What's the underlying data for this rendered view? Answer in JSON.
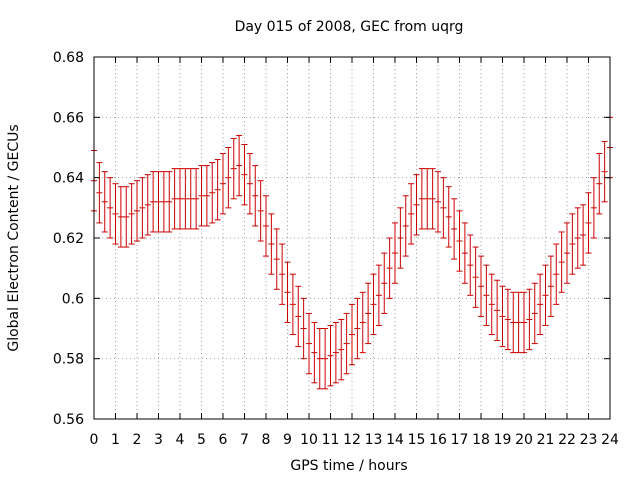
{
  "chart_data": {
    "type": "errorbar",
    "title": "Day 015 of 2008, GEC from uqrg",
    "xlabel": "GPS time / hours",
    "ylabel": "Global Electron Content / GECUs",
    "xlim": [
      0,
      24
    ],
    "ylim": [
      0.56,
      0.68
    ],
    "x_ticks": [
      "0",
      "1",
      "2",
      "3",
      "4",
      "5",
      "6",
      "7",
      "8",
      "9",
      "10",
      "11",
      "12",
      "13",
      "14",
      "15",
      "16",
      "17",
      "18",
      "19",
      "20",
      "21",
      "22",
      "23",
      "24"
    ],
    "y_ticks": [
      "0.56",
      "0.58",
      "0.6",
      "0.62",
      "0.64",
      "0.66",
      "0.68"
    ],
    "grid": true,
    "series": [
      {
        "name": "GEC",
        "color": "#cc0000",
        "x": [
          0.0,
          0.25,
          0.5,
          0.75,
          1.0,
          1.25,
          1.5,
          1.75,
          2.0,
          2.25,
          2.5,
          2.75,
          3.0,
          3.25,
          3.5,
          3.75,
          4.0,
          4.25,
          4.5,
          4.75,
          5.0,
          5.25,
          5.5,
          5.75,
          6.0,
          6.25,
          6.5,
          6.75,
          7.0,
          7.25,
          7.5,
          7.75,
          8.0,
          8.25,
          8.5,
          8.75,
          9.0,
          9.25,
          9.5,
          9.75,
          10.0,
          10.25,
          10.5,
          10.75,
          11.0,
          11.25,
          11.5,
          11.75,
          12.0,
          12.25,
          12.5,
          12.75,
          13.0,
          13.25,
          13.5,
          13.75,
          14.0,
          14.25,
          14.5,
          14.75,
          15.0,
          15.25,
          15.5,
          15.75,
          16.0,
          16.25,
          16.5,
          16.75,
          17.0,
          17.25,
          17.5,
          17.75,
          18.0,
          18.25,
          18.5,
          18.75,
          19.0,
          19.25,
          19.5,
          19.75,
          20.0,
          20.25,
          20.5,
          20.75,
          21.0,
          21.25,
          21.5,
          21.75,
          22.0,
          22.25,
          22.5,
          22.75,
          23.0,
          23.25,
          23.5,
          23.75,
          24.0
        ],
        "values": [
          0.639,
          0.635,
          0.632,
          0.63,
          0.628,
          0.627,
          0.627,
          0.628,
          0.629,
          0.63,
          0.631,
          0.632,
          0.632,
          0.632,
          0.632,
          0.633,
          0.633,
          0.633,
          0.633,
          0.633,
          0.634,
          0.634,
          0.635,
          0.636,
          0.638,
          0.64,
          0.643,
          0.644,
          0.641,
          0.638,
          0.634,
          0.629,
          0.624,
          0.618,
          0.613,
          0.608,
          0.602,
          0.598,
          0.594,
          0.59,
          0.585,
          0.582,
          0.58,
          0.58,
          0.581,
          0.582,
          0.583,
          0.585,
          0.588,
          0.59,
          0.592,
          0.595,
          0.598,
          0.601,
          0.605,
          0.61,
          0.615,
          0.62,
          0.624,
          0.628,
          0.631,
          0.633,
          0.633,
          0.633,
          0.632,
          0.63,
          0.627,
          0.623,
          0.619,
          0.615,
          0.611,
          0.607,
          0.604,
          0.601,
          0.598,
          0.596,
          0.594,
          0.593,
          0.592,
          0.592,
          0.592,
          0.593,
          0.595,
          0.598,
          0.601,
          0.604,
          0.608,
          0.612,
          0.615,
          0.618,
          0.62,
          0.621,
          0.625,
          0.63,
          0.638,
          0.642,
          0.65
        ],
        "error": 0.01
      }
    ]
  }
}
